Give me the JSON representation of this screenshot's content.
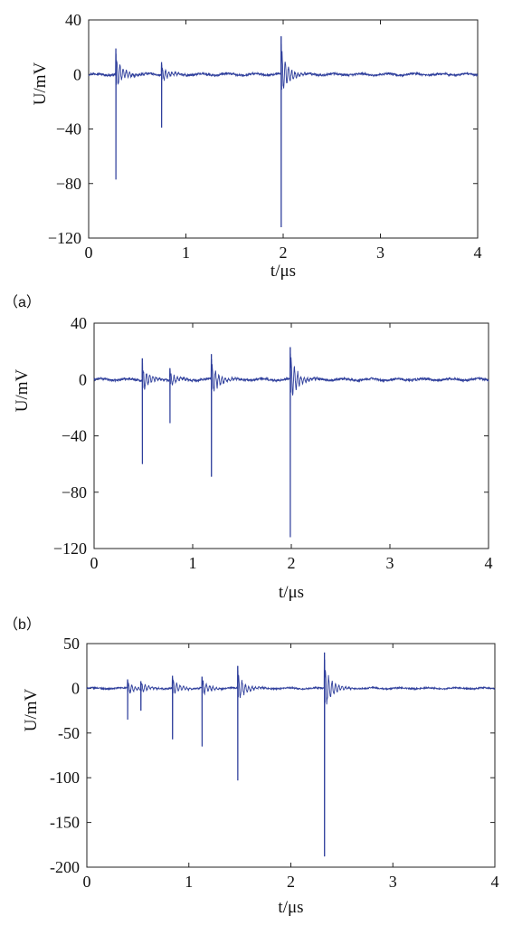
{
  "figure": {
    "panel_labels": [
      "（a）",
      "（b）"
    ]
  },
  "chart_data": [
    {
      "type": "line",
      "xlabel": "t/μs",
      "ylabel": "U/mV",
      "xlim": [
        0,
        4
      ],
      "ylim": [
        -120,
        40
      ],
      "xticks": [
        "0",
        "1",
        "2",
        "3",
        "4"
      ],
      "yticks": [
        "40",
        "0",
        "−40",
        "−80",
        "−120"
      ],
      "ytick_values": [
        40,
        0,
        -40,
        -80,
        -120
      ],
      "grid": false,
      "color": "#2f3f9c",
      "pulses": [
        {
          "t": 0.28,
          "peak": 19,
          "trough": -77
        },
        {
          "t": 0.75,
          "peak": 9,
          "trough": -39
        },
        {
          "t": 1.98,
          "peak": 28,
          "trough": -112
        }
      ]
    },
    {
      "type": "line",
      "xlabel": "t/μs",
      "ylabel": "U/mV",
      "xlim": [
        0,
        4
      ],
      "ylim": [
        -120,
        40
      ],
      "xticks": [
        "0",
        "1",
        "2",
        "3",
        "4"
      ],
      "yticks": [
        "40",
        "0",
        "−40",
        "−80",
        "−120"
      ],
      "ytick_values": [
        40,
        0,
        -40,
        -80,
        -120
      ],
      "grid": false,
      "color": "#2f3f9c",
      "pulses": [
        {
          "t": 0.49,
          "peak": 15,
          "trough": -60
        },
        {
          "t": 0.77,
          "peak": 8,
          "trough": -31
        },
        {
          "t": 1.19,
          "peak": 18,
          "trough": -69
        },
        {
          "t": 1.99,
          "peak": 23,
          "trough": -112
        }
      ]
    },
    {
      "type": "line",
      "xlabel": "t/μs",
      "ylabel": "U/mV",
      "xlim": [
        0,
        4
      ],
      "ylim": [
        -200,
        50
      ],
      "xticks": [
        "0",
        "1",
        "2",
        "3",
        "4"
      ],
      "yticks": [
        "50",
        "0",
        "-50",
        "-100",
        "-150",
        "-200"
      ],
      "ytick_values": [
        50,
        0,
        -50,
        -100,
        -150,
        -200
      ],
      "grid": false,
      "color": "#2f3f9c",
      "pulses": [
        {
          "t": 0.4,
          "peak": 10,
          "trough": -35
        },
        {
          "t": 0.53,
          "peak": 8,
          "trough": -25
        },
        {
          "t": 0.84,
          "peak": 14,
          "trough": -57
        },
        {
          "t": 1.13,
          "peak": 13,
          "trough": -65
        },
        {
          "t": 1.48,
          "peak": 25,
          "trough": -103
        },
        {
          "t": 2.33,
          "peak": 40,
          "trough": -188
        }
      ]
    }
  ]
}
